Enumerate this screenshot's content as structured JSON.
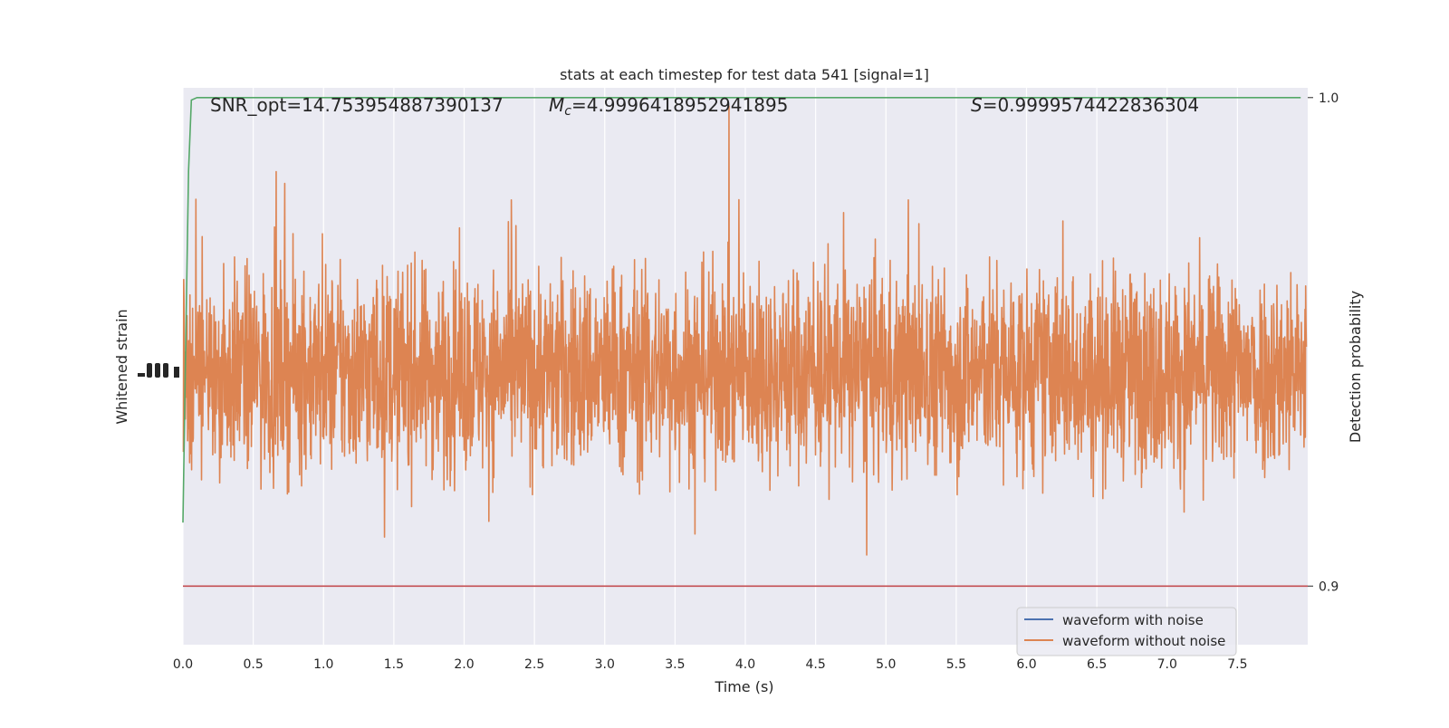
{
  "chart_data": {
    "type": "line",
    "title": "stats at each timestep for test data 541 [signal=1]",
    "xlabel": "Time (s)",
    "ylabel_left": "Whitened strain",
    "ylabel_right": "Detection probability",
    "xlim": [
      0.0,
      8.0
    ],
    "x_ticks": [
      "0.0",
      "0.5",
      "1.0",
      "1.5",
      "2.0",
      "2.5",
      "3.0",
      "3.5",
      "4.0",
      "4.5",
      "5.0",
      "5.5",
      "6.0",
      "6.5",
      "7.0",
      "7.5"
    ],
    "right_axis": {
      "ylim": [
        0.888,
        1.002
      ],
      "ticks": [
        "0.9",
        "1.0"
      ]
    },
    "grid": true,
    "legend_position": "lower-right",
    "annotations": {
      "snr": "SNR_opt=14.753954887390137",
      "mc_symbol": "M",
      "mc_subscript": "c",
      "mc_value": "=4.9996418952941895",
      "s_symbol": "S",
      "s_value": "=0.9999574422836304"
    },
    "series": [
      {
        "name": "waveform with noise",
        "color": "#4c72b0",
        "axis": "left",
        "style": "noise"
      },
      {
        "name": "waveform without noise",
        "color": "#dd8452",
        "axis": "left",
        "style": "noise"
      },
      {
        "color": "#55a868",
        "axis": "right",
        "x": [
          0.0,
          0.02,
          0.04,
          0.06,
          0.1,
          0.2,
          0.5,
          1.0,
          2.0,
          3.0,
          4.0,
          5.0,
          6.0,
          7.0,
          7.95
        ],
        "values": [
          0.913,
          0.95,
          0.985,
          0.9995,
          1.0,
          1.0,
          1.0,
          1.0,
          1.0,
          1.0,
          1.0,
          1.0,
          1.0,
          1.0,
          1.0
        ]
      },
      {
        "color": "#c44e52",
        "axis": "right",
        "x": [
          0.0,
          8.0
        ],
        "values": [
          0.9,
          0.9
        ]
      }
    ],
    "colors": {
      "plot_bg": "#eaeaf2",
      "grid": "#ffffff",
      "text": "#262626"
    }
  }
}
